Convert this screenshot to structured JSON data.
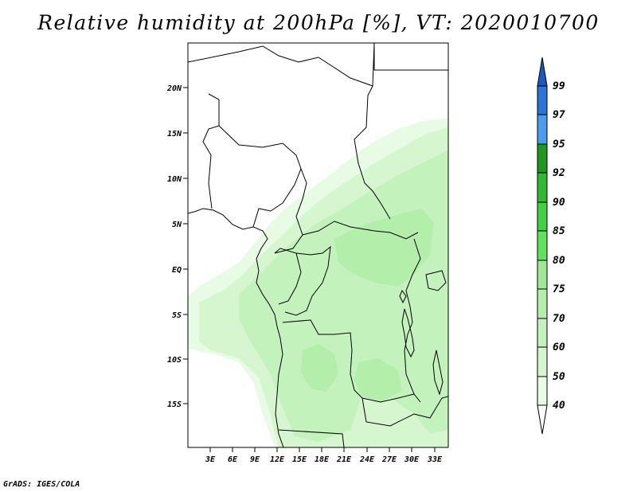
{
  "title": "Relative humidity at 200hPa [%], VT: 2020010700",
  "credit": "GrADS: IGES/COLA",
  "map": {
    "lat_ticks": [
      "20N",
      "15N",
      "10N",
      "5N",
      "EQ",
      "5S",
      "10S",
      "15S"
    ],
    "lon_ticks": [
      "3E",
      "6E",
      "9E",
      "12E",
      "15E",
      "18E",
      "21E",
      "24E",
      "27E",
      "30E",
      "33E"
    ]
  },
  "colorbar": {
    "levels": [
      "40",
      "50",
      "60",
      "70",
      "75",
      "80",
      "85",
      "90",
      "92",
      "95",
      "97",
      "99"
    ],
    "colors": {
      "lt40": "#ffffff",
      "40-50": "#e8fbe5",
      "50-60": "#d6f6d0",
      "60-70": "#c4f2bd",
      "70-75": "#b3eeab",
      "75-80": "#9fe996",
      "80-85": "#5fe35a",
      "85-90": "#40d240",
      "90-92": "#2fba2f",
      "92-95": "#1d9a1d",
      "95-97": "#4a9cf0",
      "97-99": "#2a75d8",
      "gt99": "#1a5ac0"
    }
  }
}
